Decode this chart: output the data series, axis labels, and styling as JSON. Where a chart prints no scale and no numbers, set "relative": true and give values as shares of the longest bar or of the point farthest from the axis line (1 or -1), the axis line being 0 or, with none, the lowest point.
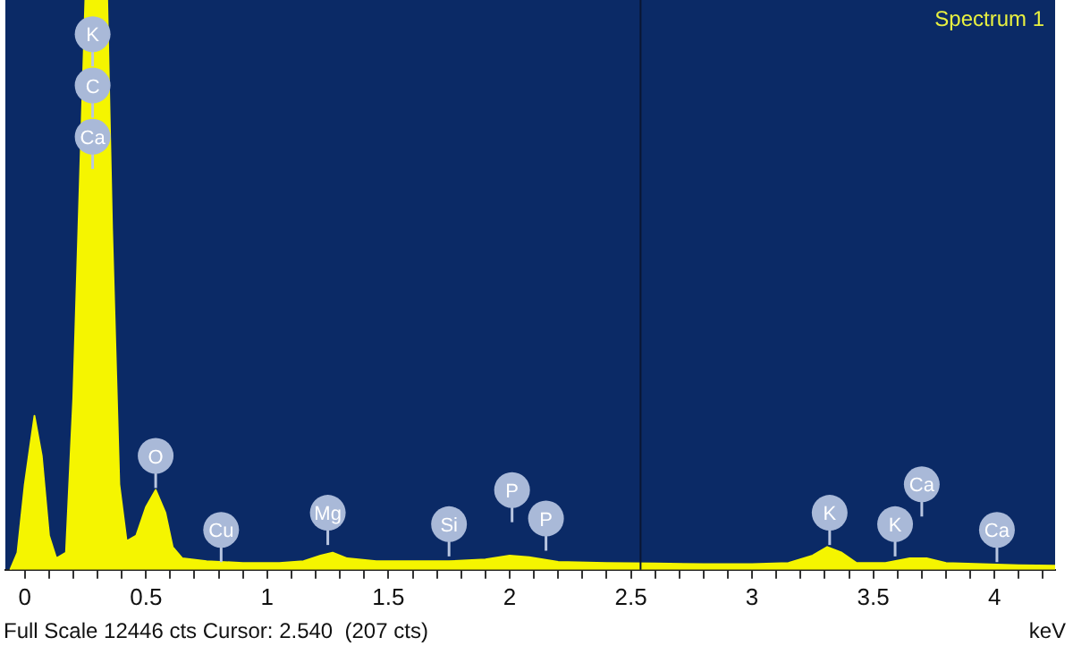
{
  "chart_data": {
    "type": "area",
    "title": "Spectrum 1",
    "xlabel": "keV",
    "relative": true,
    "annotations": [
      "Full Scale 12446 cts Cursor: 2.540  (207 cts)",
      {
        "text": "K",
        "x": 0.28,
        "y": 0.94
      },
      {
        "text": "C",
        "x": 0.28,
        "y": 0.85
      },
      {
        "text": "Ca",
        "x": 0.28,
        "y": 0.76
      },
      {
        "text": "O",
        "x": 0.54,
        "y": 0.2
      },
      {
        "text": "Cu",
        "x": 0.81,
        "y": 0.07
      },
      {
        "text": "Mg",
        "x": 1.25,
        "y": 0.1
      },
      {
        "text": "Si",
        "x": 1.75,
        "y": 0.08
      },
      {
        "text": "P",
        "x": 2.01,
        "y": 0.14
      },
      {
        "text": "P",
        "x": 2.15,
        "y": 0.09
      },
      {
        "text": "K",
        "x": 3.32,
        "y": 0.1
      },
      {
        "text": "K",
        "x": 3.59,
        "y": 0.08
      },
      {
        "text": "Ca",
        "x": 3.7,
        "y": 0.15
      },
      {
        "text": "Ca",
        "x": 4.01,
        "y": 0.07
      }
    ],
    "x": [
      -0.06,
      -0.03,
      0.0,
      0.04,
      0.07,
      0.1,
      0.13,
      0.17,
      0.2,
      0.25,
      0.34,
      0.36,
      0.39,
      0.42,
      0.46,
      0.5,
      0.54,
      0.58,
      0.61,
      0.65,
      0.75,
      0.9,
      1.05,
      1.15,
      1.22,
      1.27,
      1.33,
      1.45,
      1.6,
      1.75,
      1.9,
      2.0,
      2.08,
      2.2,
      2.4,
      2.6,
      2.8,
      3.0,
      3.15,
      3.25,
      3.31,
      3.37,
      3.43,
      3.55,
      3.65,
      3.72,
      3.8,
      3.95,
      4.1,
      4.25
    ],
    "series": [
      {
        "color": "#f5f500",
        "values": [
          0.0,
          0.03,
          0.15,
          0.27,
          0.2,
          0.06,
          0.02,
          0.03,
          0.3,
          1.0,
          1.0,
          0.6,
          0.15,
          0.05,
          0.06,
          0.11,
          0.14,
          0.1,
          0.04,
          0.02,
          0.015,
          0.012,
          0.012,
          0.015,
          0.025,
          0.03,
          0.02,
          0.015,
          0.015,
          0.015,
          0.018,
          0.025,
          0.022,
          0.014,
          0.012,
          0.011,
          0.01,
          0.01,
          0.012,
          0.025,
          0.04,
          0.03,
          0.012,
          0.012,
          0.02,
          0.02,
          0.012,
          0.01,
          0.008,
          0.007
        ]
      }
    ],
    "xlim": [
      -0.08,
      4.25
    ],
    "xticks": [
      0,
      {
        "value": 0.1,
        "label": null
      },
      {
        "value": 0.2,
        "label": null
      },
      {
        "value": 0.3,
        "label": null
      },
      {
        "value": 0.4,
        "label": null
      },
      0.5,
      {
        "value": 0.6,
        "label": null
      },
      {
        "value": 0.7,
        "label": null
      },
      {
        "value": 0.8,
        "label": null
      },
      {
        "value": 0.9,
        "label": null
      },
      1,
      {
        "value": 1.1,
        "label": null
      },
      {
        "value": 1.2,
        "label": null
      },
      {
        "value": 1.3,
        "label": null
      },
      {
        "value": 1.4,
        "label": null
      },
      1.5,
      {
        "value": 1.6,
        "label": null
      },
      {
        "value": 1.7,
        "label": null
      },
      {
        "value": 1.8,
        "label": null
      },
      {
        "value": 1.9,
        "label": null
      },
      2,
      {
        "value": 2.1,
        "label": null
      },
      {
        "value": 2.2,
        "label": null
      },
      {
        "value": 2.3,
        "label": null
      },
      {
        "value": 2.4,
        "label": null
      },
      2.5,
      {
        "value": 2.6,
        "label": null
      },
      {
        "value": 2.7,
        "label": null
      },
      {
        "value": 2.8,
        "label": null
      },
      {
        "value": 2.9,
        "label": null
      },
      3,
      {
        "value": 3.1,
        "label": null
      },
      {
        "value": 3.2,
        "label": null
      },
      {
        "value": 3.3,
        "label": null
      },
      {
        "value": 3.4,
        "label": null
      },
      3.5,
      {
        "value": 3.6,
        "label": null
      },
      {
        "value": 3.7,
        "label": null
      },
      {
        "value": 3.8,
        "label": null
      },
      {
        "value": 3.9,
        "label": null
      },
      4,
      {
        "value": 4.1,
        "label": null
      },
      {
        "value": 4.2,
        "label": null
      }
    ],
    "ref_lines": [
      {
        "axis": "x",
        "value": 2.54,
        "color": "#0a1633"
      }
    ],
    "grid": false,
    "legend": false
  }
}
